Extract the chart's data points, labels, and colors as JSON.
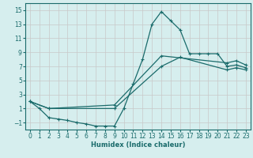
{
  "xlabel": "Humidex (Indice chaleur)",
  "bg_color": "#d6eeee",
  "grid_color": "#c8c8c8",
  "line_color": "#1a6b6b",
  "xlim": [
    -0.5,
    23.5
  ],
  "ylim": [
    -2,
    16
  ],
  "xticks": [
    0,
    1,
    2,
    3,
    4,
    5,
    6,
    7,
    8,
    9,
    10,
    11,
    12,
    13,
    14,
    15,
    16,
    17,
    18,
    19,
    20,
    21,
    22,
    23
  ],
  "yticks": [
    -1,
    1,
    3,
    5,
    7,
    9,
    11,
    13,
    15
  ],
  "line1_x": [
    0,
    1,
    2,
    3,
    4,
    5,
    6,
    7,
    8,
    9,
    10,
    11,
    12,
    13,
    14,
    15,
    16,
    17,
    18,
    19,
    20,
    21,
    22,
    23
  ],
  "line1_y": [
    2,
    1,
    -0.3,
    -0.5,
    -0.7,
    -1.0,
    -1.2,
    -1.5,
    -1.5,
    -1.5,
    1.0,
    4.5,
    8.0,
    13.0,
    14.8,
    13.5,
    12.2,
    8.8,
    8.8,
    8.8,
    8.8,
    7.0,
    7.2,
    6.8
  ],
  "line2_x": [
    0,
    2,
    9,
    14,
    21,
    22,
    23
  ],
  "line2_y": [
    2,
    1,
    1.5,
    8.5,
    7.5,
    7.8,
    7.2
  ],
  "line3_x": [
    0,
    2,
    9,
    14,
    16,
    21,
    22,
    23
  ],
  "line3_y": [
    2,
    1,
    1.0,
    7.0,
    8.3,
    6.5,
    6.8,
    6.5
  ]
}
